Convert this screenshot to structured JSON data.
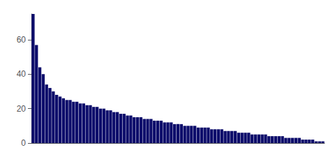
{
  "chart_data": {
    "type": "bar",
    "values": [
      75,
      57,
      44,
      40,
      34,
      32,
      30,
      28,
      27,
      26,
      25,
      25,
      24,
      24,
      23,
      23,
      22,
      22,
      21,
      21,
      20,
      20,
      19,
      19,
      18,
      18,
      17,
      17,
      16,
      16,
      15,
      15,
      15,
      14,
      14,
      14,
      13,
      13,
      13,
      12,
      12,
      12,
      11,
      11,
      11,
      10,
      10,
      10,
      10,
      9,
      9,
      9,
      9,
      8,
      8,
      8,
      8,
      7,
      7,
      7,
      7,
      6,
      6,
      6,
      6,
      5,
      5,
      5,
      5,
      5,
      4,
      4,
      4,
      4,
      4,
      3,
      3,
      3,
      3,
      3,
      2,
      2,
      2,
      2,
      1,
      1,
      1
    ],
    "color": "#0d0d6b",
    "ylim": [
      0,
      75
    ],
    "yticks": [
      0,
      20,
      40,
      60
    ],
    "grid": false,
    "tick_labels": "y"
  }
}
